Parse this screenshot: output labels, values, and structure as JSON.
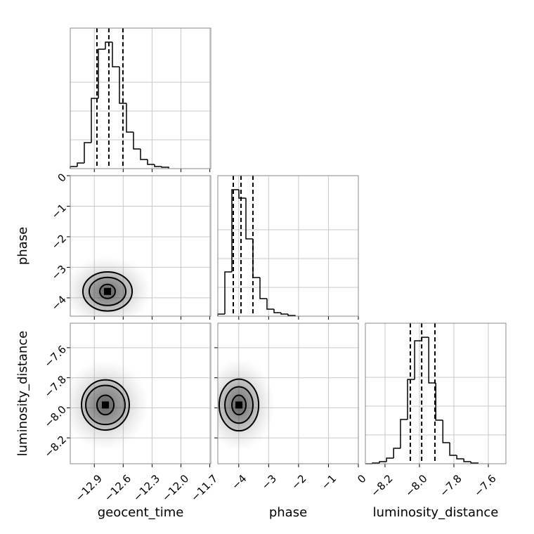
{
  "chart_data": {
    "type": "corner",
    "parameters": [
      {
        "label": "geocent_time",
        "lim": [
          -13.15,
          -11.69
        ],
        "ticks": [
          {
            "value": -12.9,
            "label": "−12.9"
          },
          {
            "value": -12.6,
            "label": "−12.6"
          },
          {
            "value": -12.3,
            "label": "−12.3"
          },
          {
            "value": -12.0,
            "label": "−12.0"
          },
          {
            "value": -11.7,
            "label": "−11.7"
          }
        ],
        "bins": [
          -13.15,
          -13.077,
          -13.004,
          -12.931,
          -12.858,
          -12.785,
          -12.712,
          -12.639,
          -12.566,
          -12.493,
          -12.42,
          -12.347,
          -12.274,
          -12.201,
          -12.128
        ],
        "counts": [
          3,
          8,
          37,
          100,
          170,
          180,
          145,
          93,
          52,
          28,
          13,
          6,
          3,
          2
        ],
        "count_lim": [
          0,
          200
        ],
        "quantiles": [
          -12.873,
          -12.749,
          -12.603
        ]
      },
      {
        "label": "phase",
        "lim": [
          -4.7,
          0
        ],
        "ylim": [
          -4.6,
          0
        ],
        "ticks": [
          {
            "value": -4,
            "label": "−4"
          },
          {
            "value": -3,
            "label": "−3"
          },
          {
            "value": -2,
            "label": "−2"
          },
          {
            "value": -1,
            "label": "−1"
          },
          0
        ],
        "bins": [
          -4.7,
          -4.465,
          -4.23,
          -3.995,
          -3.76,
          -3.525,
          -3.29,
          -3.055,
          -2.82,
          -2.585,
          -2.35,
          -2.115
        ],
        "counts": [
          3,
          63,
          180,
          168,
          110,
          55,
          25,
          10,
          5,
          3,
          1
        ],
        "count_lim": [
          0,
          200
        ],
        "quantiles": [
          -4.183,
          -3.925,
          -3.525
        ]
      },
      {
        "label": "luminosity_distance",
        "lim": [
          -8.314,
          -7.498
        ],
        "ylim": [
          -8.372,
          -7.437
        ],
        "ticks": [
          {
            "value": -8.2,
            "label": "−8.2"
          },
          {
            "value": -8.0,
            "label": "−8.0"
          },
          {
            "value": -7.8,
            "label": "−7.8"
          },
          {
            "value": -7.6,
            "label": "−7.6"
          }
        ],
        "bins": [
          -8.273,
          -8.232,
          -8.191,
          -8.15,
          -8.11,
          -8.069,
          -8.028,
          -7.987,
          -7.946,
          -7.905,
          -7.864,
          -7.824,
          -7.783,
          -7.742,
          -7.701,
          -7.66
        ],
        "counts": [
          1,
          3,
          8,
          22,
          63,
          120,
          175,
          180,
          115,
          62,
          30,
          12,
          7,
          3,
          1
        ],
        "count_lim": [
          0,
          200
        ],
        "quantiles": [
          -8.053,
          -7.987,
          -7.91
        ]
      }
    ],
    "pairs": [
      {
        "x": 0,
        "y": 1,
        "center": [
          -12.763,
          -3.79
        ],
        "contours": [
          [
            0.08,
            0.23
          ],
          [
            0.19,
            0.46
          ],
          [
            0.256,
            0.64
          ]
        ]
      },
      {
        "x": 0,
        "y": 2,
        "center": [
          -12.785,
          -7.981
        ],
        "contours": [
          [
            0.088,
            0.065
          ],
          [
            0.204,
            0.13
          ],
          [
            0.248,
            0.167
          ]
        ]
      },
      {
        "x": 1,
        "y": 2,
        "center": [
          -3.994,
          -7.981
        ],
        "contours": [
          [
            0.235,
            0.065
          ],
          [
            0.47,
            0.121
          ],
          [
            0.66,
            0.172
          ]
        ]
      }
    ],
    "grid": true,
    "color": "#000000"
  }
}
